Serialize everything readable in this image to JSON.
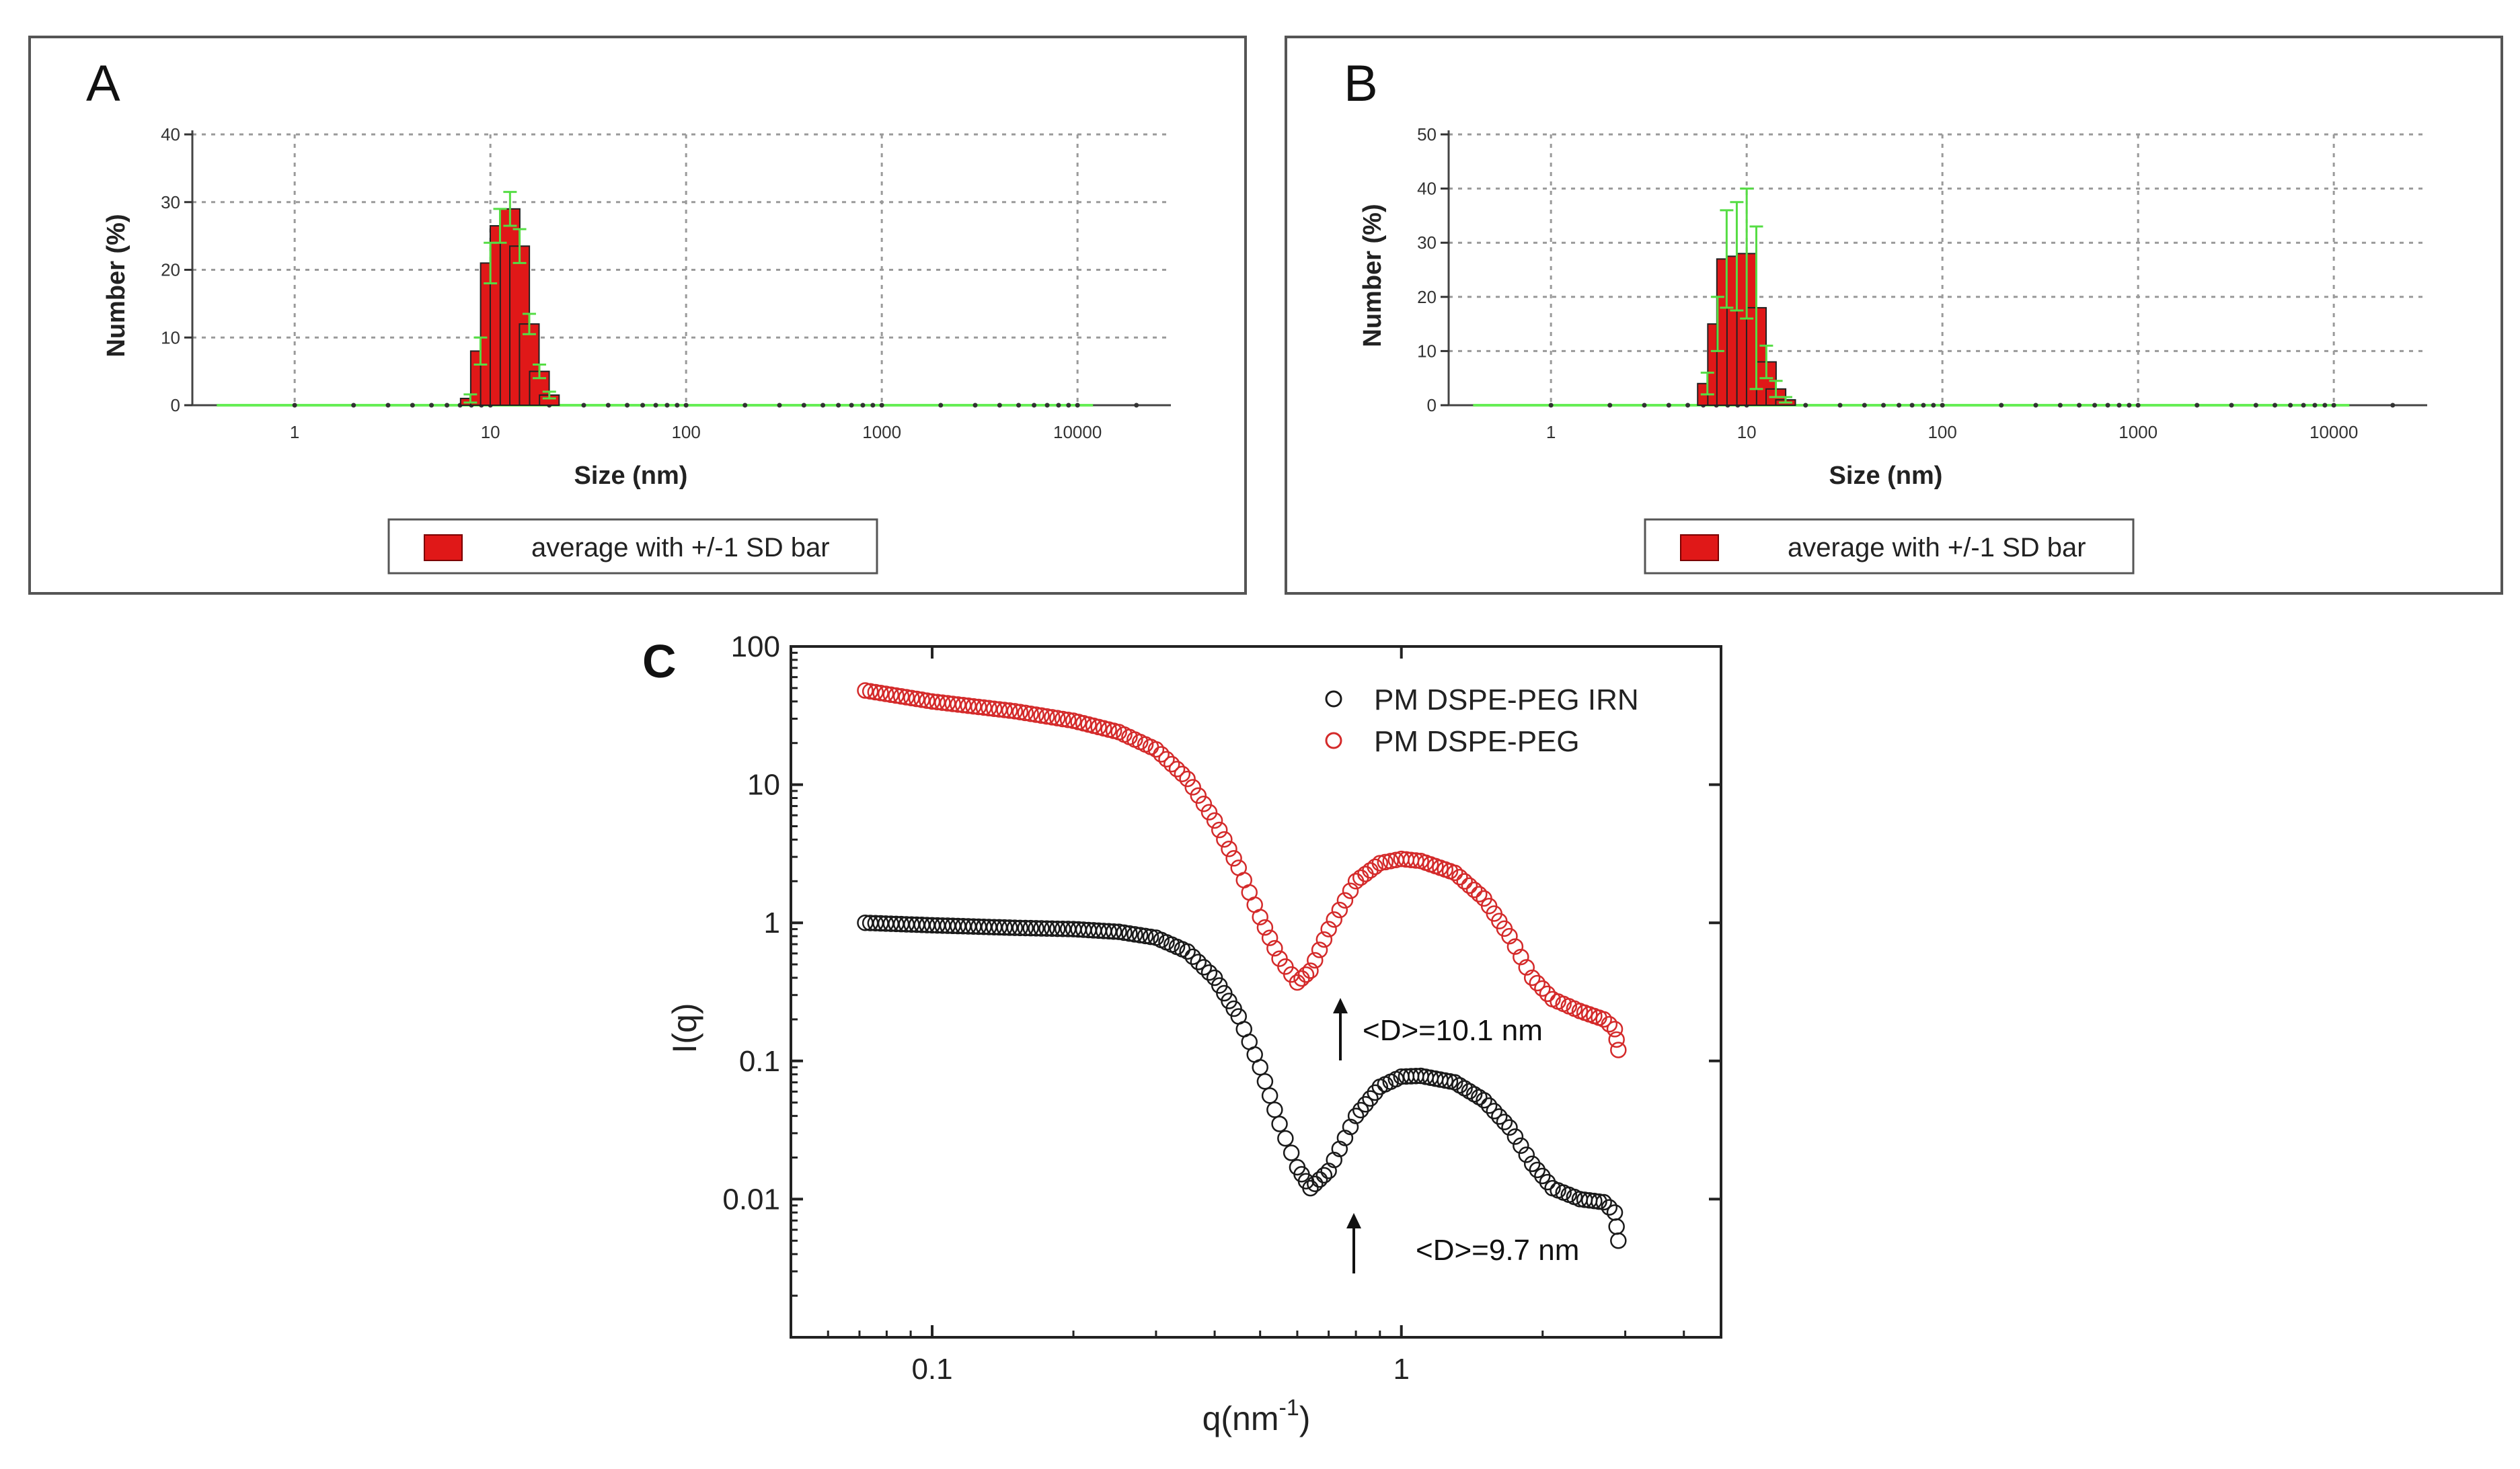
{
  "colors": {
    "bar_fill": "#e01818",
    "bar_edge": "#222222",
    "error_bar": "#55dd44",
    "baseline_green": "#66ee55",
    "red_series": "#d42a2a",
    "black_series": "#1a1a1a",
    "grid": "#9a9a9a",
    "panel_border": "#555555"
  },
  "chart_data": [
    {
      "panel": "A",
      "type": "bar",
      "xscale": "log",
      "xlabel": "Size (nm)",
      "ylabel": "Number (%)",
      "xlim": [
        0.3,
        30000
      ],
      "ylim": [
        0,
        40
      ],
      "yticks": [
        0,
        10,
        20,
        30,
        40
      ],
      "xticks": [
        {
          "value": 1,
          "label": "1"
        },
        {
          "value": 10,
          "label": "10"
        },
        {
          "value": 100,
          "label": "100"
        },
        {
          "value": 1000,
          "label": "1000"
        },
        {
          "value": 10000,
          "label": "10000"
        }
      ],
      "grid": true,
      "legend": {
        "label": "average with +/-1 SD bar",
        "position": "bottom-center"
      },
      "bins": [
        {
          "x": 7.9,
          "y": 1.0,
          "sd": 0.6
        },
        {
          "x": 8.9,
          "y": 8.0,
          "sd": 2.0
        },
        {
          "x": 10.0,
          "y": 21.0,
          "sd": 3.0
        },
        {
          "x": 11.2,
          "y": 26.5,
          "sd": 2.5
        },
        {
          "x": 12.6,
          "y": 29.0,
          "sd": 2.5
        },
        {
          "x": 14.1,
          "y": 23.5,
          "sd": 2.5
        },
        {
          "x": 15.8,
          "y": 12.0,
          "sd": 1.5
        },
        {
          "x": 17.8,
          "y": 5.0,
          "sd": 1.0
        },
        {
          "x": 20.0,
          "y": 1.5,
          "sd": 0.5
        }
      ]
    },
    {
      "panel": "B",
      "type": "bar",
      "xscale": "log",
      "xlabel": "Size (nm)",
      "ylabel": "Number (%)",
      "xlim": [
        0.3,
        30000
      ],
      "ylim": [
        0,
        50
      ],
      "yticks": [
        0,
        10,
        20,
        30,
        40,
        50
      ],
      "xticks": [
        {
          "value": 1,
          "label": "1"
        },
        {
          "value": 10,
          "label": "10"
        },
        {
          "value": 100,
          "label": "100"
        },
        {
          "value": 1000,
          "label": "1000"
        },
        {
          "value": 10000,
          "label": "10000"
        }
      ],
      "grid": true,
      "legend": {
        "label": "average with +/-1 SD bar",
        "position": "bottom-center"
      },
      "bins": [
        {
          "x": 6.3,
          "y": 4.0,
          "sd": 2.0
        },
        {
          "x": 7.1,
          "y": 15.0,
          "sd": 5.0
        },
        {
          "x": 7.9,
          "y": 27.0,
          "sd": 9.0
        },
        {
          "x": 8.9,
          "y": 27.5,
          "sd": 10.0
        },
        {
          "x": 10.0,
          "y": 28.0,
          "sd": 12.0
        },
        {
          "x": 11.2,
          "y": 18.0,
          "sd": 15.0
        },
        {
          "x": 12.6,
          "y": 8.0,
          "sd": 3.0
        },
        {
          "x": 14.1,
          "y": 3.0,
          "sd": 1.5
        },
        {
          "x": 15.8,
          "y": 1.0,
          "sd": 0.5
        }
      ]
    },
    {
      "panel": "C",
      "type": "scatter",
      "xscale": "log",
      "yscale": "log",
      "xlabel": "q(nm",
      "xlabel_sup": "-1",
      "xlabel_suffix": ")",
      "ylabel": "I(q)",
      "xlim": [
        0.05,
        4.8
      ],
      "ylim": [
        0.001,
        100
      ],
      "xticks": [
        {
          "value": 0.1,
          "label": "0.1"
        },
        {
          "value": 1,
          "label": "1"
        }
      ],
      "yticks": [
        {
          "value": 100,
          "label": "100"
        },
        {
          "value": 10,
          "label": "10"
        },
        {
          "value": 1,
          "label": "1"
        },
        {
          "value": 0.1,
          "label": "0.1"
        },
        {
          "value": 0.01,
          "label": "0.01"
        }
      ],
      "legend_position": "top-right",
      "series": [
        {
          "name": "PM DSPE-PEG IRN",
          "color": "black",
          "points": [
            [
              0.072,
              1.0
            ],
            [
              0.1,
              0.96
            ],
            [
              0.15,
              0.92
            ],
            [
              0.2,
              0.9
            ],
            [
              0.25,
              0.86
            ],
            [
              0.3,
              0.78
            ],
            [
              0.35,
              0.62
            ],
            [
              0.4,
              0.4
            ],
            [
              0.45,
              0.21
            ],
            [
              0.5,
              0.09
            ],
            [
              0.55,
              0.035
            ],
            [
              0.6,
              0.017
            ],
            [
              0.64,
              0.012
            ],
            [
              0.7,
              0.016
            ],
            [
              0.8,
              0.04
            ],
            [
              0.9,
              0.065
            ],
            [
              1.0,
              0.077
            ],
            [
              1.1,
              0.078
            ],
            [
              1.3,
              0.07
            ],
            [
              1.5,
              0.052
            ],
            [
              1.7,
              0.033
            ],
            [
              1.9,
              0.018
            ],
            [
              2.1,
              0.012
            ],
            [
              2.4,
              0.01
            ],
            [
              2.7,
              0.0095
            ],
            [
              2.85,
              0.008
            ],
            [
              2.9,
              0.005
            ]
          ],
          "annotation": {
            "text": "<D>=9.7 nm",
            "q": 0.64
          }
        },
        {
          "name": "PM DSPE-PEG",
          "color": "red",
          "points": [
            [
              0.072,
              48.0
            ],
            [
              0.1,
              40.0
            ],
            [
              0.15,
              34.0
            ],
            [
              0.2,
              29.0
            ],
            [
              0.25,
              24.0
            ],
            [
              0.3,
              18.0
            ],
            [
              0.35,
              11.0
            ],
            [
              0.4,
              5.5
            ],
            [
              0.45,
              2.5
            ],
            [
              0.5,
              1.1
            ],
            [
              0.55,
              0.55
            ],
            [
              0.6,
              0.37
            ],
            [
              0.64,
              0.45
            ],
            [
              0.7,
              0.9
            ],
            [
              0.8,
              2.0
            ],
            [
              0.9,
              2.7
            ],
            [
              1.0,
              2.9
            ],
            [
              1.1,
              2.8
            ],
            [
              1.3,
              2.3
            ],
            [
              1.5,
              1.5
            ],
            [
              1.7,
              0.8
            ],
            [
              1.9,
              0.4
            ],
            [
              2.1,
              0.28
            ],
            [
              2.4,
              0.23
            ],
            [
              2.7,
              0.2
            ],
            [
              2.85,
              0.17
            ],
            [
              2.9,
              0.12
            ]
          ],
          "annotation": {
            "text": "<D>=10.1 nm",
            "q": 0.62
          }
        }
      ]
    }
  ]
}
